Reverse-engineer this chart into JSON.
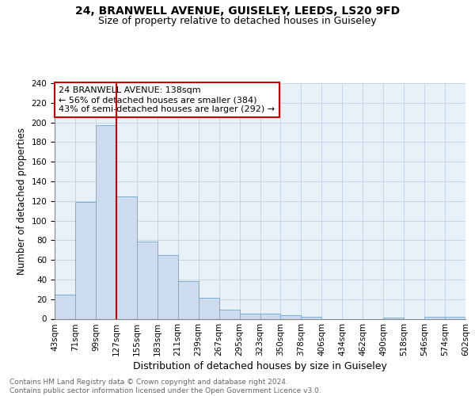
{
  "title1": "24, BRANWELL AVENUE, GUISELEY, LEEDS, LS20 9FD",
  "title2": "Size of property relative to detached houses in Guiseley",
  "xlabel": "Distribution of detached houses by size in Guiseley",
  "ylabel": "Number of detached properties",
  "bar_values": [
    25,
    119,
    197,
    125,
    79,
    65,
    38,
    21,
    9,
    5,
    5,
    4,
    2,
    0,
    0,
    0,
    1,
    0,
    2,
    2
  ],
  "bar_labels": [
    "43sqm",
    "71sqm",
    "99sqm",
    "127sqm",
    "155sqm",
    "183sqm",
    "211sqm",
    "239sqm",
    "267sqm",
    "295sqm",
    "323sqm",
    "350sqm",
    "378sqm",
    "406sqm",
    "434sqm",
    "462sqm",
    "490sqm",
    "518sqm",
    "546sqm",
    "574sqm",
    "602sqm"
  ],
  "bar_color": "#ccdcee",
  "bar_edge_color": "#7aaed0",
  "bar_edge_width": 0.7,
  "grid_color": "#c0d0e0",
  "bg_color": "#e8f0f8",
  "red_line_color": "#cc0000",
  "annotation_text": "24 BRANWELL AVENUE: 138sqm\n← 56% of detached houses are smaller (384)\n43% of semi-detached houses are larger (292) →",
  "annotation_box_color": "#cc0000",
  "ylim": [
    0,
    240
  ],
  "yticks": [
    0,
    20,
    40,
    60,
    80,
    100,
    120,
    140,
    160,
    180,
    200,
    220,
    240
  ],
  "footnote": "Contains HM Land Registry data © Crown copyright and database right 2024.\nContains public sector information licensed under the Open Government Licence v3.0.",
  "title1_fontsize": 10,
  "title2_fontsize": 9,
  "xlabel_fontsize": 9,
  "ylabel_fontsize": 8.5,
  "tick_fontsize": 7.5,
  "annot_fontsize": 8,
  "footnote_fontsize": 6.5
}
